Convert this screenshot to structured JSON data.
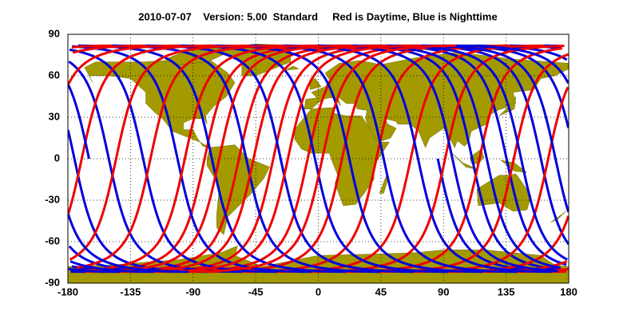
{
  "title": "2010-07-07    Version: 5.00  Standard     Red is Daytime, Blue is Nighttime",
  "map": {
    "xlim": [
      -180,
      180
    ],
    "ylim": [
      -90,
      90
    ],
    "xticks": [
      -180,
      -135,
      -90,
      -45,
      0,
      45,
      90,
      135,
      180
    ],
    "yticks": [
      -90,
      -60,
      -30,
      0,
      30,
      60,
      90
    ],
    "grid": true
  }
}
